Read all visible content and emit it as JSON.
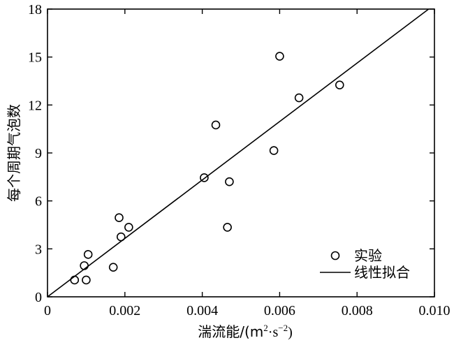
{
  "chart_data": {
    "type": "scatter",
    "xlabel": "湍流能/(m²·s⁻²)",
    "xlabel_parts": {
      "main": "湍流能/(m",
      "sup1": "2",
      "mid": "·s",
      "sup2": "−2",
      "end": ")"
    },
    "ylabel": "每个周期气泡数",
    "xlim": [
      0,
      0.01
    ],
    "ylim": [
      0,
      18
    ],
    "xticks": [
      0,
      0.002,
      0.004,
      0.006,
      0.008,
      0.01
    ],
    "xtick_labels": [
      "0",
      "0.002",
      "0.004",
      "0.006",
      "0.008",
      "0.010"
    ],
    "yticks": [
      0,
      3,
      6,
      9,
      12,
      15,
      18
    ],
    "ytick_labels": [
      "0",
      "3",
      "6",
      "9",
      "12",
      "15",
      "18"
    ],
    "grid": false,
    "legend_position": "bottom-right",
    "series": [
      {
        "name": "实验",
        "kind": "scatter",
        "marker": "open-circle",
        "x": [
          0.0007,
          0.00095,
          0.001,
          0.00105,
          0.0017,
          0.00185,
          0.0019,
          0.0021,
          0.00405,
          0.00435,
          0.00465,
          0.0047,
          0.00585,
          0.006,
          0.0065,
          0.00755
        ],
        "y": [
          1.05,
          1.95,
          1.05,
          2.65,
          1.85,
          4.95,
          3.75,
          4.35,
          7.45,
          10.75,
          4.35,
          7.2,
          9.15,
          15.05,
          12.45,
          13.25
        ]
      },
      {
        "name": "线性拟合",
        "kind": "line",
        "x": [
          0,
          0.00985
        ],
        "y": [
          0,
          18
        ]
      }
    ]
  }
}
